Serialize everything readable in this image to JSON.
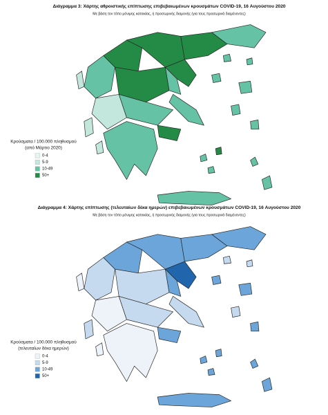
{
  "maps": [
    {
      "title": "Διάγραμμα 3: Χάρτης αθροιστικής επίπτωσης επιβεβαιωμένων κρουσμάτων COVID-19, 16 Αυγούστου 2020",
      "subtitle": "Με βάση τον τόπο μόνιμης κατοικίας, ή προσωρινής διαμονής (για τους προσωρινά διαμένοντες)",
      "legend_title": [
        "Κρούσματα / 100.000 πληθυσμού",
        "(από Μάρτιο 2020)"
      ],
      "legend": [
        {
          "label": "0-4",
          "color": "#e6f5ef"
        },
        {
          "label": "5-9",
          "color": "#c3e7dc"
        },
        {
          "label": "10-49",
          "color": "#66c2a4"
        },
        {
          "label": "50+",
          "color": "#238b45"
        }
      ]
    },
    {
      "title": "Διάγραμμα 4: Χάρτης επίπτωσης (τελευταίων δέκα ημερών) επιβεβαιωμένων κρουσμάτων COVID-19, 16 Αυγούστου 2020",
      "subtitle": "Με βάση τον τόπο μόνιμης κατοικίας, ή προσωρινής διαμονής (για τους προσωρινά διαμένοντες)",
      "legend_title": [
        "Κρούσματα / 100.000 πληθυσμού",
        "(τελευταίων δέκα ημερών)"
      ],
      "legend": [
        {
          "label": "0-4",
          "color": "#eef3fa"
        },
        {
          "label": "5-9",
          "color": "#c6daef"
        },
        {
          "label": "10-49",
          "color": "#6ba5d9"
        },
        {
          "label": "50+",
          "color": "#2166ac"
        }
      ]
    }
  ]
}
